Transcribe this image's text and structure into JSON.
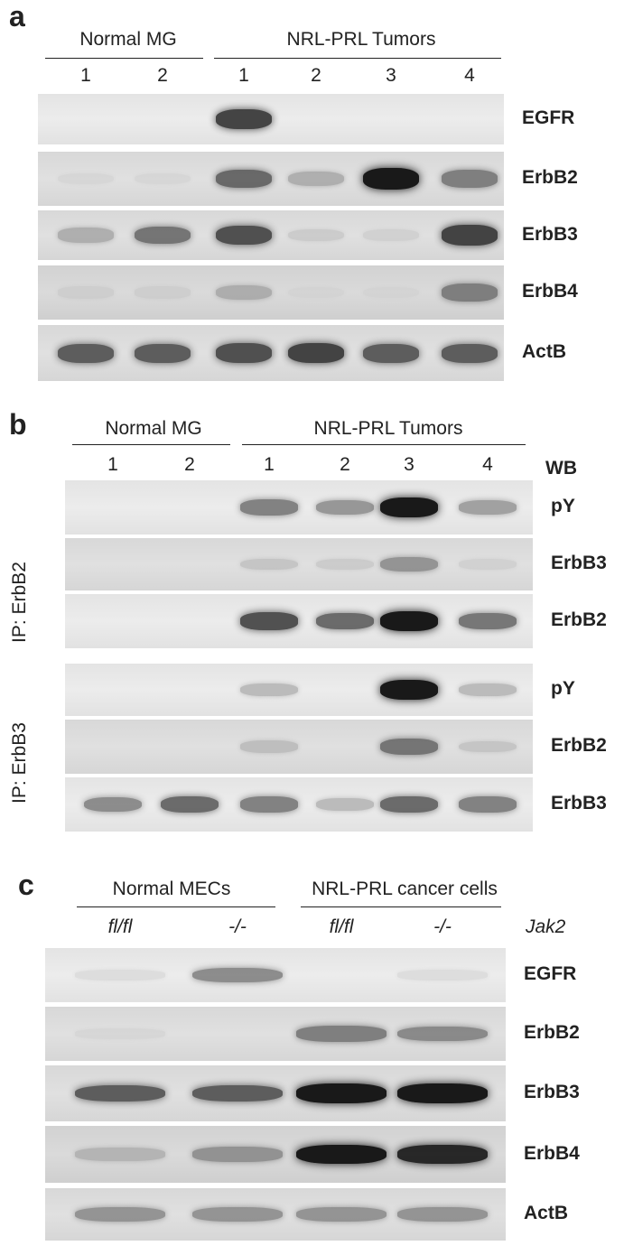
{
  "panel_a": {
    "letter": "a",
    "group_left": "Normal MG",
    "group_right": "NRL-PRL Tumors",
    "lanes": [
      "1",
      "2",
      "1",
      "2",
      "3",
      "4"
    ],
    "rows": [
      {
        "label": "EGFR",
        "intensities": [
          0.0,
          0.0,
          0.85,
          0.0,
          0.0,
          0.0
        ]
      },
      {
        "label": "ErbB2",
        "intensities": [
          0.05,
          0.05,
          0.7,
          0.35,
          1.0,
          0.6
        ]
      },
      {
        "label": "ErbB3",
        "intensities": [
          0.35,
          0.65,
          0.8,
          0.15,
          0.1,
          0.85
        ]
      },
      {
        "label": "ErbB4",
        "intensities": [
          0.1,
          0.1,
          0.35,
          0.05,
          0.05,
          0.6
        ]
      },
      {
        "label": "ActB",
        "intensities": [
          0.75,
          0.75,
          0.8,
          0.85,
          0.75,
          0.75
        ]
      }
    ]
  },
  "panel_b": {
    "letter": "b",
    "group_left": "Normal MG",
    "group_right": "NRL-PRL Tumors",
    "lanes": [
      "1",
      "2",
      "1",
      "2",
      "3",
      "4"
    ],
    "wb_header": "WB",
    "ip_groups": [
      {
        "label": "IP: ErbB2",
        "rows": [
          {
            "label": "pY",
            "intensities": [
              0.0,
              0.0,
              0.6,
              0.5,
              1.0,
              0.45
            ]
          },
          {
            "label": "ErbB3",
            "intensities": [
              0.0,
              0.0,
              0.2,
              0.15,
              0.5,
              0.1
            ]
          },
          {
            "label": "ErbB2",
            "intensities": [
              0.0,
              0.0,
              0.8,
              0.7,
              1.0,
              0.65
            ]
          }
        ]
      },
      {
        "label": "IP: ErbB3",
        "rows": [
          {
            "label": "pY",
            "intensities": [
              0.0,
              0.0,
              0.3,
              0.0,
              1.0,
              0.3
            ]
          },
          {
            "label": "ErbB2",
            "intensities": [
              0.0,
              0.0,
              0.25,
              0.0,
              0.65,
              0.2
            ]
          },
          {
            "label": "ErbB3",
            "intensities": [
              0.55,
              0.7,
              0.6,
              0.3,
              0.7,
              0.6
            ]
          }
        ]
      }
    ]
  },
  "panel_c": {
    "letter": "c",
    "group_left": "Normal MECs",
    "group_right": "NRL-PRL cancer cells",
    "conditions": [
      "fl/fl",
      "-/-",
      "fl/fl",
      "-/-"
    ],
    "gene_label": "Jak2",
    "rows": [
      {
        "label": "EGFR",
        "intensities": [
          0.05,
          0.55,
          0.0,
          0.05
        ]
      },
      {
        "label": "ErbB2",
        "intensities": [
          0.05,
          0.0,
          0.6,
          0.55
        ]
      },
      {
        "label": "ErbB3",
        "intensities": [
          0.75,
          0.75,
          1.0,
          1.0
        ]
      },
      {
        "label": "ErbB4",
        "intensities": [
          0.3,
          0.5,
          1.0,
          0.95
        ]
      },
      {
        "label": "ActB",
        "intensities": [
          0.5,
          0.5,
          0.5,
          0.5
        ]
      }
    ]
  }
}
